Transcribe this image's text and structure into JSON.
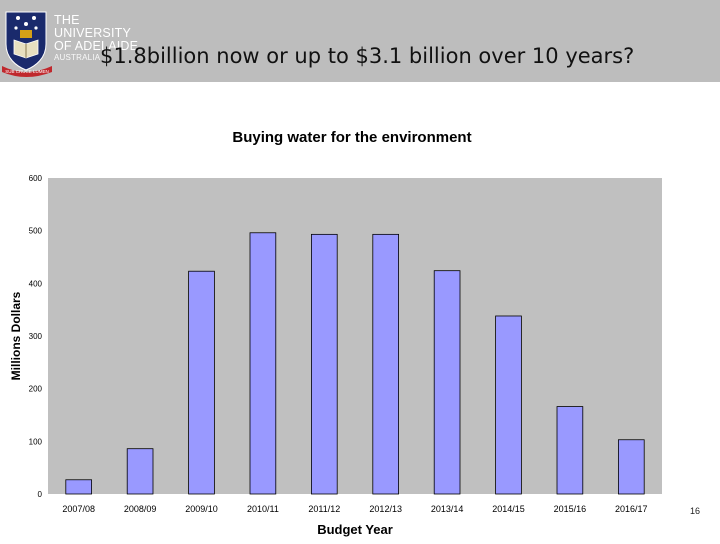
{
  "header": {
    "university_name_line1": "THE UNIVERSITY",
    "university_name_line2": "OF ADELAIDE",
    "country": "AUSTRALIA",
    "crest_ribbon": "SUB CRUCE LUMEN",
    "band_color": "#bdbdbd"
  },
  "slide": {
    "title": "$1.8billion now or up to $3.1 billion over 10 years?",
    "page_number": "16"
  },
  "chart_data": {
    "type": "bar",
    "title": "Buying water for the environment",
    "xlabel": "Budget Year",
    "ylabel": "Millions Dollars",
    "categories": [
      "2007/08",
      "2008/09",
      "2009/10",
      "2010/11",
      "2011/12",
      "2012/13",
      "2013/14",
      "2014/15",
      "2015/16",
      "2016/17"
    ],
    "values": [
      27,
      86,
      423,
      496,
      493,
      493,
      424,
      338,
      166,
      103
    ],
    "ylim": [
      0,
      600
    ],
    "yticks": [
      0,
      100,
      200,
      300,
      400,
      500,
      600
    ],
    "grid": false,
    "bar_color": "#9999ff",
    "plot_background": "#c0c0c0"
  }
}
